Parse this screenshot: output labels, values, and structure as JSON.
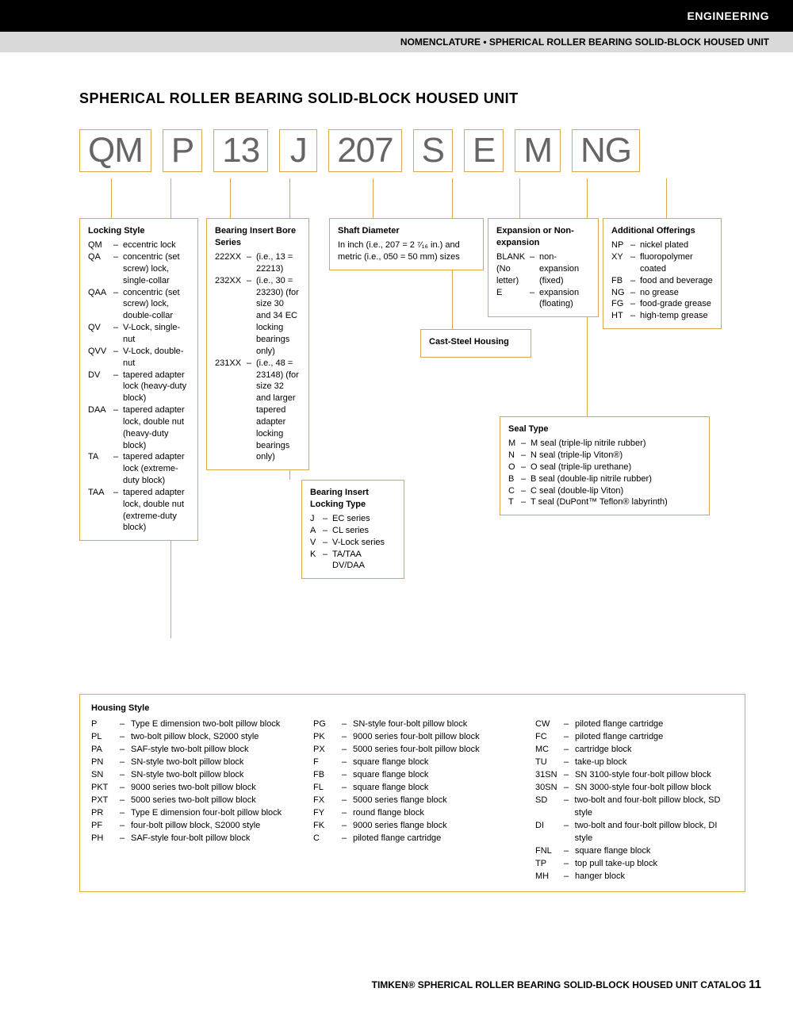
{
  "header": {
    "section": "ENGINEERING",
    "crumb": "NOMENCLATURE • SPHERICAL ROLLER BEARING SOLID-BLOCK HOUSED UNIT"
  },
  "title": "SPHERICAL ROLLER BEARING SOLID-BLOCK HOUSED UNIT",
  "codes": [
    "QM",
    "P",
    "13",
    "J",
    "207",
    "S",
    "E",
    "M",
    "NG"
  ],
  "locking_style": {
    "head": "Locking Style",
    "items": [
      {
        "c": "QM",
        "d": "eccentric lock"
      },
      {
        "c": "QA",
        "d": "concentric (set screw) lock, single-collar"
      },
      {
        "c": "QAA",
        "d": "concentric (set screw) lock, double-collar"
      },
      {
        "c": "QV",
        "d": "V-Lock, single-nut"
      },
      {
        "c": "QVV",
        "d": "V-Lock, double-nut"
      },
      {
        "c": "DV",
        "d": "tapered adapter lock (heavy-duty block)"
      },
      {
        "c": "DAA",
        "d": "tapered adapter lock, double nut (heavy-duty block)"
      },
      {
        "c": "TA",
        "d": "tapered adapter lock (extreme-duty block)"
      },
      {
        "c": "TAA",
        "d": "tapered adapter lock, double nut (extreme-duty block)"
      }
    ]
  },
  "bore_series": {
    "head": "Bearing Insert Bore Series",
    "items": [
      {
        "c": "222XX",
        "d": "(i.e., 13 = 22213)"
      },
      {
        "c": "232XX",
        "d": "(i.e., 30 = 23230) (for size 30 and 34 EC locking bearings only)"
      },
      {
        "c": "231XX",
        "d": "(i.e., 48 = 23148) (for size 32 and larger tapered adapter locking bearings only)"
      }
    ]
  },
  "locking_type": {
    "head": "Bearing Insert Locking Type",
    "items": [
      {
        "c": "J",
        "d": "EC series"
      },
      {
        "c": "A",
        "d": "CL series"
      },
      {
        "c": "V",
        "d": "V-Lock series"
      },
      {
        "c": "K",
        "d": "TA/TAA DV/DAA"
      }
    ]
  },
  "shaft": {
    "head": "Shaft Diameter",
    "text": "In inch (i.e., 207 = 2 ⁷⁄₁₆ in.) and metric (i.e., 050 = 50 mm) sizes"
  },
  "cast": "Cast-Steel Housing",
  "expansion": {
    "head": "Expansion or Non-expansion",
    "items": [
      {
        "c": "BLANK (No letter)",
        "d": "non-expansion (fixed)"
      },
      {
        "c": "E",
        "d": "expansion (floating)"
      }
    ]
  },
  "additional": {
    "head": "Additional Offerings",
    "items": [
      {
        "c": "NP",
        "d": "nickel plated"
      },
      {
        "c": "XY",
        "d": "fluoropolymer coated"
      },
      {
        "c": "FB",
        "d": "food and beverage"
      },
      {
        "c": "NG",
        "d": "no grease"
      },
      {
        "c": "FG",
        "d": "food-grade grease"
      },
      {
        "c": "HT",
        "d": "high-temp grease"
      }
    ]
  },
  "seal": {
    "head": "Seal Type",
    "items": [
      {
        "c": "M",
        "d": "M seal (triple-lip nitrile rubber)"
      },
      {
        "c": "N",
        "d": "N seal (triple-lip Viton®)"
      },
      {
        "c": "O",
        "d": "O seal (triple-lip urethane)"
      },
      {
        "c": "B",
        "d": "B seal (double-lip nitrile rubber)"
      },
      {
        "c": "C",
        "d": "C seal (double-lip Viton)"
      },
      {
        "c": "T",
        "d": "T seal (DuPont™ Teflon® labyrinth)"
      }
    ]
  },
  "housing": {
    "head": "Housing Style",
    "col1": [
      {
        "c": "P",
        "d": "Type E dimension two-bolt pillow block"
      },
      {
        "c": "PL",
        "d": "two-bolt pillow block, S2000 style"
      },
      {
        "c": "PA",
        "d": "SAF-style two-bolt pillow block"
      },
      {
        "c": "PN",
        "d": "SN-style two-bolt pillow block"
      },
      {
        "c": "SN",
        "d": "SN-style two-bolt pillow block"
      },
      {
        "c": "PKT",
        "d": "9000 series two-bolt pillow block"
      },
      {
        "c": "PXT",
        "d": "5000 series two-bolt pillow block"
      },
      {
        "c": "PR",
        "d": "Type E dimension four-bolt pillow block"
      },
      {
        "c": "PF",
        "d": "four-bolt pillow block, S2000 style"
      },
      {
        "c": "PH",
        "d": "SAF-style four-bolt pillow block"
      }
    ],
    "col2": [
      {
        "c": "PG",
        "d": "SN-style four-bolt pillow block"
      },
      {
        "c": "PK",
        "d": "9000 series four-bolt pillow block"
      },
      {
        "c": "PX",
        "d": "5000 series four-bolt pillow block"
      },
      {
        "c": "F",
        "d": "square flange block"
      },
      {
        "c": "FB",
        "d": "square flange block"
      },
      {
        "c": "FL",
        "d": "square flange block"
      },
      {
        "c": "FX",
        "d": "5000 series flange block"
      },
      {
        "c": "FY",
        "d": "round flange block"
      },
      {
        "c": "FK",
        "d": "9000 series flange block"
      },
      {
        "c": "C",
        "d": "piloted flange cartridge"
      }
    ],
    "col3": [
      {
        "c": "CW",
        "d": "piloted flange cartridge"
      },
      {
        "c": "FC",
        "d": "piloted flange cartridge"
      },
      {
        "c": "MC",
        "d": "cartridge block"
      },
      {
        "c": "TU",
        "d": "take-up block"
      },
      {
        "c": "31SN",
        "d": "SN 3100-style four-bolt pillow block"
      },
      {
        "c": "30SN",
        "d": "SN 3000-style four-bolt pillow block"
      },
      {
        "c": "SD",
        "d": "two-bolt and four-bolt pillow block, SD style"
      },
      {
        "c": "DI",
        "d": "two-bolt and four-bolt pillow block, DI style"
      },
      {
        "c": "FNL",
        "d": "square flange block"
      },
      {
        "c": "TP",
        "d": "top pull take-up block"
      },
      {
        "c": "MH",
        "d": "hanger block"
      }
    ]
  },
  "footer": {
    "brand": "TIMKEN®",
    "text": "SPHERICAL ROLLER BEARING SOLID-BLOCK HOUSED UNIT CATALOG",
    "page": "11"
  },
  "colors": {
    "border": "#d9a84b",
    "gray": "#d9d9d9",
    "text_gray": "#666666"
  }
}
